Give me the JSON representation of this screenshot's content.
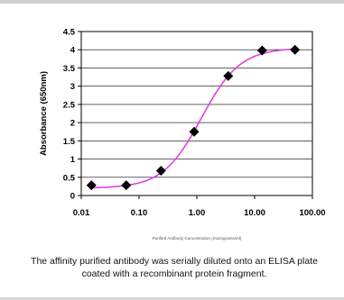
{
  "chart_data": {
    "type": "scatter",
    "title": "",
    "xlabel": "Purified Antibody Concentration (micrograms/ml)",
    "ylabel": "Absorbance (650nm)",
    "x_scale": "log",
    "xlim": [
      0.01,
      100
    ],
    "ylim": [
      0,
      4.5
    ],
    "x_ticks": [
      "0.01",
      "0.10",
      "1.00",
      "10.00",
      "100.00"
    ],
    "y_ticks": [
      "0",
      "0.5",
      "1",
      "1.5",
      "2",
      "2.5",
      "3",
      "3.5",
      "4",
      "4.5"
    ],
    "grid": "horizontal",
    "series": [
      {
        "marker": "diamond",
        "color": "#000000",
        "fit_color": "#e040e0",
        "x": [
          0.015,
          0.06,
          0.24,
          0.9,
          3.5,
          13.5,
          50
        ],
        "y": [
          0.28,
          0.28,
          0.68,
          1.75,
          3.28,
          3.98,
          4.0
        ]
      }
    ]
  },
  "caption": "The affinity purified antibody was serially diluted onto an ELISA plate coated with a recombinant protein fragment."
}
